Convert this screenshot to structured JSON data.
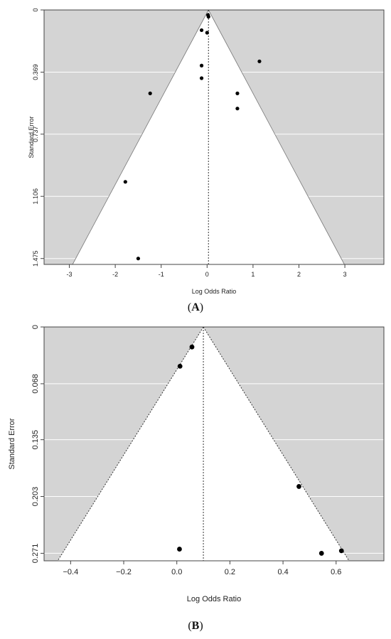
{
  "chart_data": [
    {
      "type": "scatter",
      "panel_label": "A",
      "xlabel": "Log Odds Ratio",
      "ylabel": "Standard Error",
      "xlim": [
        -3.55,
        3.85
      ],
      "ylim": [
        0,
        1.51
      ],
      "x_ticks": [
        -3,
        -2,
        -1,
        0,
        1,
        2,
        3
      ],
      "y_ticks": [
        0,
        0.369,
        0.737,
        1.106,
        1.475
      ],
      "y_tick_labels": [
        "0",
        "0.369",
        "0.737",
        "1.106",
        "1.475"
      ],
      "y_reversed": true,
      "grid": "horizontal",
      "pooled_estimate": 0.03,
      "funnel_apex": 0.03,
      "points": [
        {
          "x": 0.02,
          "y": 0.03
        },
        {
          "x": 0.03,
          "y": 0.04
        },
        {
          "x": -0.12,
          "y": 0.12
        },
        {
          "x": 0.0,
          "y": 0.135
        },
        {
          "x": 1.14,
          "y": 0.305
        },
        {
          "x": -0.12,
          "y": 0.33
        },
        {
          "x": -0.12,
          "y": 0.405
        },
        {
          "x": -1.24,
          "y": 0.495
        },
        {
          "x": 0.66,
          "y": 0.495
        },
        {
          "x": 0.66,
          "y": 0.585
        },
        {
          "x": -1.78,
          "y": 1.02
        },
        {
          "x": -1.5,
          "y": 1.475
        }
      ]
    },
    {
      "type": "scatter",
      "panel_label": "B",
      "xlabel": "Log Odds Ratio",
      "ylabel": "Standard Error",
      "xlim": [
        -0.5,
        0.78
      ],
      "ylim": [
        0,
        0.28
      ],
      "x_ticks": [
        -0.4,
        -0.2,
        0.0,
        0.2,
        0.4,
        0.6
      ],
      "x_tick_labels": [
        "−0.4",
        "−0.2",
        "0.0",
        "0.2",
        "0.4",
        "0.6"
      ],
      "y_ticks": [
        0,
        0.068,
        0.135,
        0.203,
        0.271
      ],
      "y_tick_labels": [
        "0",
        "0.068",
        "0.135",
        "0.203",
        "0.271"
      ],
      "y_reversed": true,
      "grid": "horizontal",
      "pooled_estimate": 0.1,
      "funnel_apex": 0.1,
      "points": [
        {
          "x": 0.057,
          "y": 0.024
        },
        {
          "x": 0.012,
          "y": 0.047
        },
        {
          "x": 0.46,
          "y": 0.191
        },
        {
          "x": 0.01,
          "y": 0.266
        },
        {
          "x": 0.545,
          "y": 0.271
        },
        {
          "x": 0.62,
          "y": 0.268
        }
      ]
    }
  ]
}
